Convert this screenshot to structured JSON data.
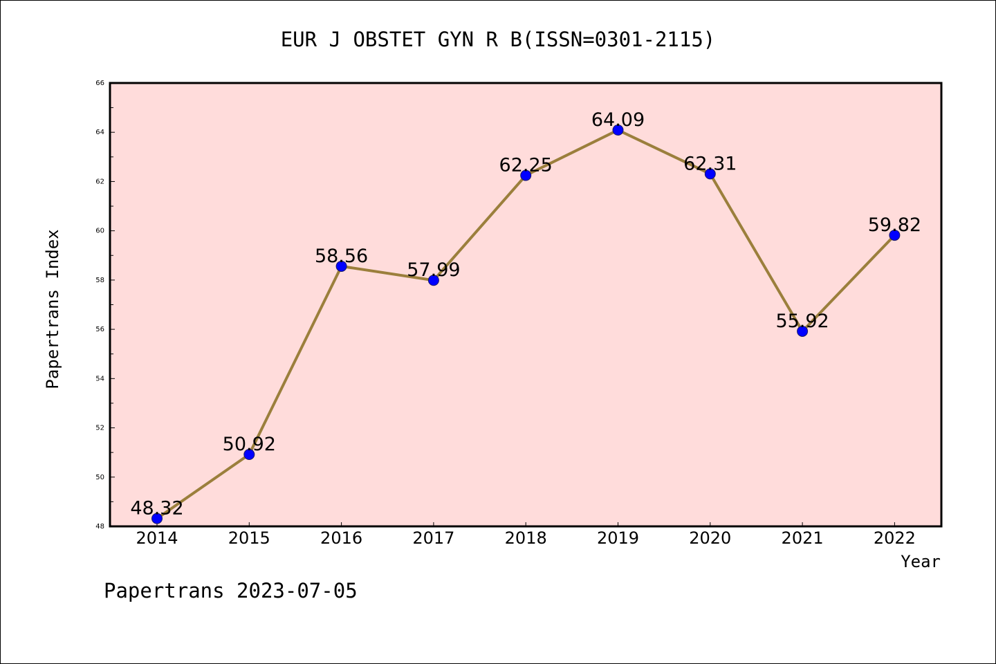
{
  "chart_data": {
    "type": "line",
    "title": "EUR J OBSTET GYN R B(ISSN=0301-2115)",
    "xlabel": "Year",
    "ylabel": "Papertrans Index",
    "footer": "Papertrans 2023-07-05",
    "x": [
      "2014",
      "2015",
      "2016",
      "2017",
      "2018",
      "2019",
      "2020",
      "2021",
      "2022"
    ],
    "values": [
      48.32,
      50.92,
      58.56,
      57.99,
      62.25,
      64.09,
      62.31,
      55.92,
      59.82
    ],
    "value_labels": [
      "48.32",
      "50.92",
      "58.56",
      "57.99",
      "62.25",
      "64.09",
      "62.31",
      "55.92",
      "59.82"
    ],
    "ylim": [
      48,
      66
    ],
    "yticks": [
      "48",
      "50",
      "52",
      "54",
      "56",
      "58",
      "60",
      "62",
      "64",
      "66"
    ],
    "grid": false,
    "colors": {
      "plot_background": "#ffdcdb",
      "line": "#9b7f3c",
      "marker": "#0000ff"
    }
  }
}
